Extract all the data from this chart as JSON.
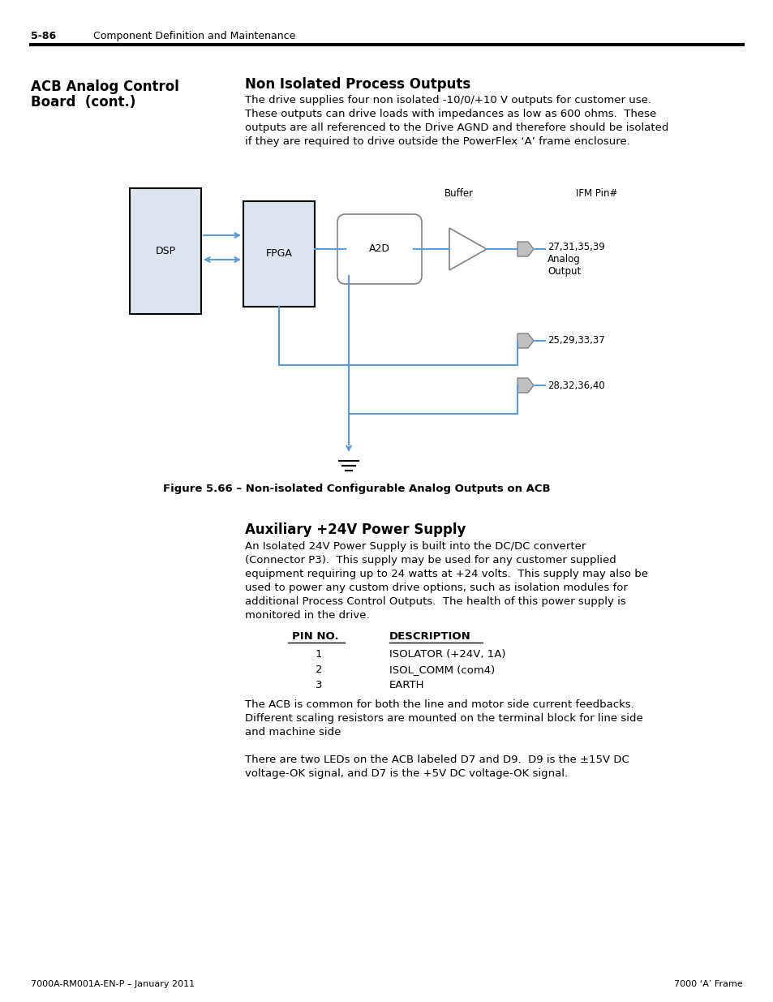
{
  "page_header_num": "5-86",
  "page_header_text": "Component Definition and Maintenance",
  "left_heading_line1": "ACB Analog Control",
  "left_heading_line2": "Board  (cont.)",
  "section1_title": "Non Isolated Process Outputs",
  "figure_caption": "Figure 5.66 – Non-isolated Configurable Analog Outputs on ACB",
  "section2_title": "Auxiliary +24V Power Supply",
  "table_header_col1": "PIN NO.",
  "table_header_col2": "DESCRIPTION",
  "table_rows": [
    [
      "1",
      "ISOLATOR (+24V, 1A)"
    ],
    [
      "2",
      "ISOL_COMM (com4)"
    ],
    [
      "3",
      "EARTH"
    ]
  ],
  "footer_left": "7000A-RM001A-EN-P – January 2011",
  "footer_right": "7000 ‘A’ Frame",
  "bg_color": "#ffffff",
  "blue_color": "#5b9bd5",
  "box_fill": "#dce6f1",
  "body1_lines": [
    "The drive supplies four non isolated -10/0/+10 V outputs for customer use.",
    "These outputs can drive loads with impedances as low as 600 ohms.  These",
    "outputs are all referenced to the Drive AGND and therefore should be isolated",
    "if they are required to drive outside the PowerFlex ‘A’ frame enclosure."
  ],
  "body2_lines": [
    "An Isolated 24V Power Supply is built into the DC/DC converter",
    "(Connector P3).  This supply may be used for any customer supplied",
    "equipment requiring up to 24 watts at +24 volts.  This supply may also be",
    "used to power any custom drive options, such as isolation modules for",
    "additional Process Control Outputs.  The health of this power supply is",
    "monitored in the drive."
  ],
  "body3_lines": [
    "The ACB is common for both the line and motor side current feedbacks.",
    "Different scaling resistors are mounted on the terminal block for line side",
    "and machine side"
  ],
  "body4_lines": [
    "There are two LEDs on the ACB labeled D7 and D9.  D9 is the ±15V DC",
    "voltage-OK signal, and D7 is the +5V DC voltage-OK signal."
  ]
}
